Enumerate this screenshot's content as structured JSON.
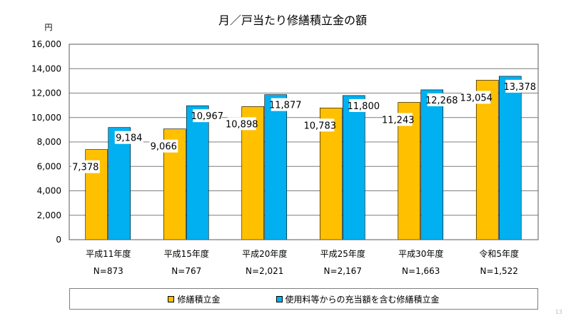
{
  "chart_data": {
    "type": "bar",
    "title": "月／戸当たり修繕積立金の額",
    "ylabel": "円",
    "xlabel": "",
    "ylim": [
      0,
      16000
    ],
    "yticks": [
      0,
      2000,
      4000,
      6000,
      8000,
      10000,
      12000,
      14000,
      16000
    ],
    "ytick_labels": [
      "0",
      "2,000",
      "4,000",
      "6,000",
      "8,000",
      "10,000",
      "12,000",
      "14,000",
      "16,000"
    ],
    "grid": true,
    "legend_position": "bottom",
    "categories": [
      "平成11年度",
      "平成15年度",
      "平成20年度",
      "平成25年度",
      "平成30年度",
      "令和5年度"
    ],
    "sample_sizes": [
      "N=873",
      "N=767",
      "N=2,021",
      "N=2,167",
      "N=1,663",
      "N=1,522"
    ],
    "series": [
      {
        "name": "修繕積立金",
        "color": "#ffc000",
        "values": [
          7378,
          9066,
          10898,
          10783,
          11243,
          13054
        ],
        "labels": [
          "7,378",
          "9,066",
          "10,898",
          "10,783",
          "11,243",
          "13,054"
        ]
      },
      {
        "name": "使用料等からの充当額を含む修繕積立金",
        "color": "#00b0f0",
        "values": [
          9184,
          10967,
          11877,
          11800,
          12268,
          13378
        ],
        "labels": [
          "9,184",
          "10,967",
          "11,877",
          "11,800",
          "12,268",
          "13,378"
        ]
      }
    ]
  },
  "page_mark": "13"
}
